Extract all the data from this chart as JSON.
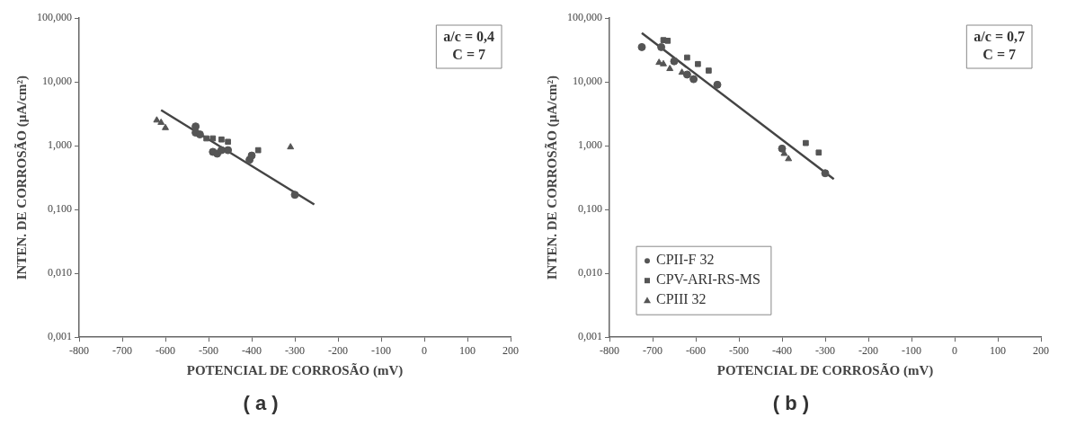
{
  "chart_data": [
    {
      "type": "scatter",
      "title": "( a )",
      "xlabel": "POTENCIAL DE CORROSÃO (mV)",
      "ylabel": "INTEN. DE CORROSÃO (µA/cm²)",
      "annotations": [
        "a/c = 0,4",
        "C = 7"
      ],
      "log": "y",
      "grid": false,
      "legend": false,
      "xlim": [
        -800,
        200
      ],
      "xticks": [
        -800,
        -700,
        -600,
        -500,
        -400,
        -300,
        -200,
        -100,
        0,
        100,
        200
      ],
      "ylim": [
        0.001,
        100
      ],
      "yticks": [
        {
          "value": 0.001,
          "label": "0,001"
        },
        {
          "value": 0.01,
          "label": "0,010"
        },
        {
          "value": 0.1,
          "label": "0,100"
        },
        {
          "value": 1,
          "label": "1,000"
        },
        {
          "value": 10,
          "label": "10,000"
        },
        {
          "value": 100,
          "label": "100,000"
        }
      ],
      "series": [
        {
          "color": "#555555",
          "marker": "circle",
          "x": [
            -530,
            -530,
            -520,
            -490,
            -480,
            -470,
            -455,
            -405,
            -400,
            -300
          ],
          "values": [
            2.0,
            1.6,
            1.5,
            0.8,
            0.75,
            0.85,
            0.85,
            0.6,
            0.7,
            0.17
          ]
        },
        {
          "color": "#555555",
          "marker": "square",
          "x": [
            -505,
            -490,
            -470,
            -455,
            -385
          ],
          "values": [
            1.3,
            1.3,
            1.25,
            1.15,
            0.85
          ]
        },
        {
          "color": "#555555",
          "marker": "triangle",
          "x": [
            -620,
            -610,
            -600,
            -310
          ],
          "values": [
            2.5,
            2.3,
            1.9,
            0.95
          ]
        },
        {
          "type": "line",
          "color": "#444444",
          "marker": "none",
          "line_style": "solid",
          "x": [
            -610,
            -255
          ],
          "values": [
            3.6,
            0.12
          ]
        }
      ]
    },
    {
      "type": "scatter",
      "title": "( b )",
      "xlabel": "POTENCIAL DE CORROSÃO (mV)",
      "ylabel": "INTEN. DE CORROSÃO (µA/cm²)",
      "annotations": [
        "a/c = 0,7",
        "C = 7"
      ],
      "log": "y",
      "grid": false,
      "legend": "bottom left",
      "xlim": [
        -800,
        200
      ],
      "xticks": [
        -800,
        -700,
        -600,
        -500,
        -400,
        -300,
        -200,
        -100,
        0,
        100,
        200
      ],
      "ylim": [
        0.001,
        100
      ],
      "yticks": [
        {
          "value": 0.001,
          "label": "0,001"
        },
        {
          "value": 0.01,
          "label": "0,010"
        },
        {
          "value": 0.1,
          "label": "0,100"
        },
        {
          "value": 1,
          "label": "1,000"
        },
        {
          "value": 10,
          "label": "10,000"
        },
        {
          "value": 100,
          "label": "100,000"
        }
      ],
      "series": [
        {
          "name": "CPII-F 32",
          "color": "#555555",
          "marker": "circle",
          "x": [
            -725,
            -680,
            -650,
            -620,
            -605,
            -550,
            -400,
            -300
          ],
          "values": [
            35,
            35,
            21,
            13,
            11,
            9,
            0.9,
            0.37
          ]
        },
        {
          "name": "CPV-ARI-RS-MS",
          "color": "#555555",
          "marker": "square",
          "x": [
            -675,
            -665,
            -620,
            -595,
            -570,
            -345,
            -315
          ],
          "values": [
            45,
            44,
            24,
            19,
            15,
            1.1,
            0.78
          ]
        },
        {
          "name": "CPIII 32",
          "color": "#555555",
          "marker": "triangle",
          "x": [
            -685,
            -675,
            -660,
            -632,
            -395,
            -385
          ],
          "values": [
            20,
            19,
            16,
            14,
            0.75,
            0.62
          ]
        },
        {
          "type": "line",
          "color": "#444444",
          "marker": "none",
          "line_style": "solid",
          "x": [
            -725,
            -280
          ],
          "values": [
            58,
            0.3
          ]
        }
      ]
    }
  ]
}
